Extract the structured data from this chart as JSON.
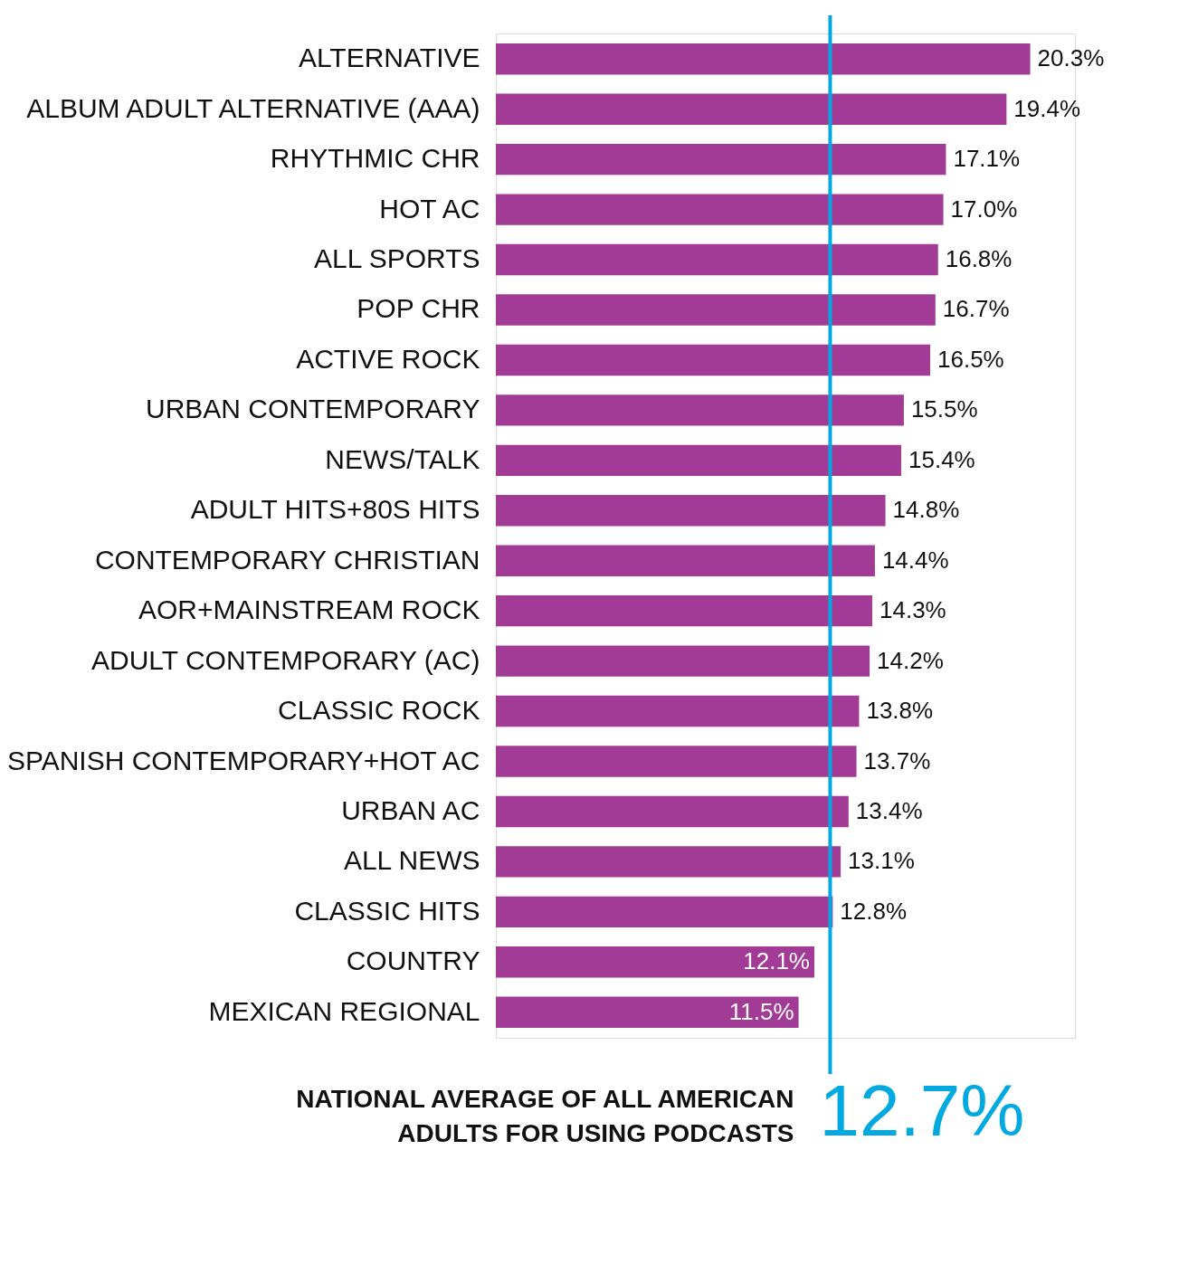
{
  "chart_data": {
    "type": "bar",
    "orientation": "horizontal",
    "categories": [
      "ALTERNATIVE",
      "ALBUM ADULT ALTERNATIVE (AAA)",
      "RHYTHMIC CHR",
      "HOT AC",
      "ALL SPORTS",
      "POP CHR",
      "ACTIVE ROCK",
      "URBAN CONTEMPORARY",
      "NEWS/TALK",
      "ADULT HITS+80S HITS",
      "CONTEMPORARY CHRISTIAN",
      "AOR+MAINSTREAM ROCK",
      "ADULT CONTEMPORARY (AC)",
      "CLASSIC ROCK",
      "SPANISH CONTEMPORARY+HOT AC",
      "URBAN AC",
      "ALL NEWS",
      "CLASSIC HITS",
      "COUNTRY",
      "MEXICAN REGIONAL"
    ],
    "values": [
      20.3,
      19.4,
      17.1,
      17.0,
      16.8,
      16.7,
      16.5,
      15.5,
      15.4,
      14.8,
      14.4,
      14.3,
      14.2,
      13.8,
      13.7,
      13.4,
      13.1,
      12.8,
      12.1,
      11.5
    ],
    "value_labels": [
      "20.3%",
      "19.4%",
      "17.1%",
      "17.0%",
      "16.8%",
      "16.7%",
      "16.5%",
      "15.5%",
      "15.4%",
      "14.8%",
      "14.4%",
      "14.3%",
      "14.2%",
      "13.8%",
      "13.7%",
      "13.4%",
      "13.1%",
      "12.8%",
      "12.1%",
      "11.5%"
    ],
    "color": "#a23b95",
    "xlim": [
      0,
      22
    ],
    "tick_labels": "y",
    "grid": false,
    "ref_lines": [
      {
        "axis": "x",
        "value": 12.7,
        "label": "12.7%",
        "color": "#00a9e0"
      }
    ],
    "annotations": [
      "NATIONAL AVERAGE OF ALL AMERICAN\nADULTS FOR USING PODCASTS"
    ]
  }
}
